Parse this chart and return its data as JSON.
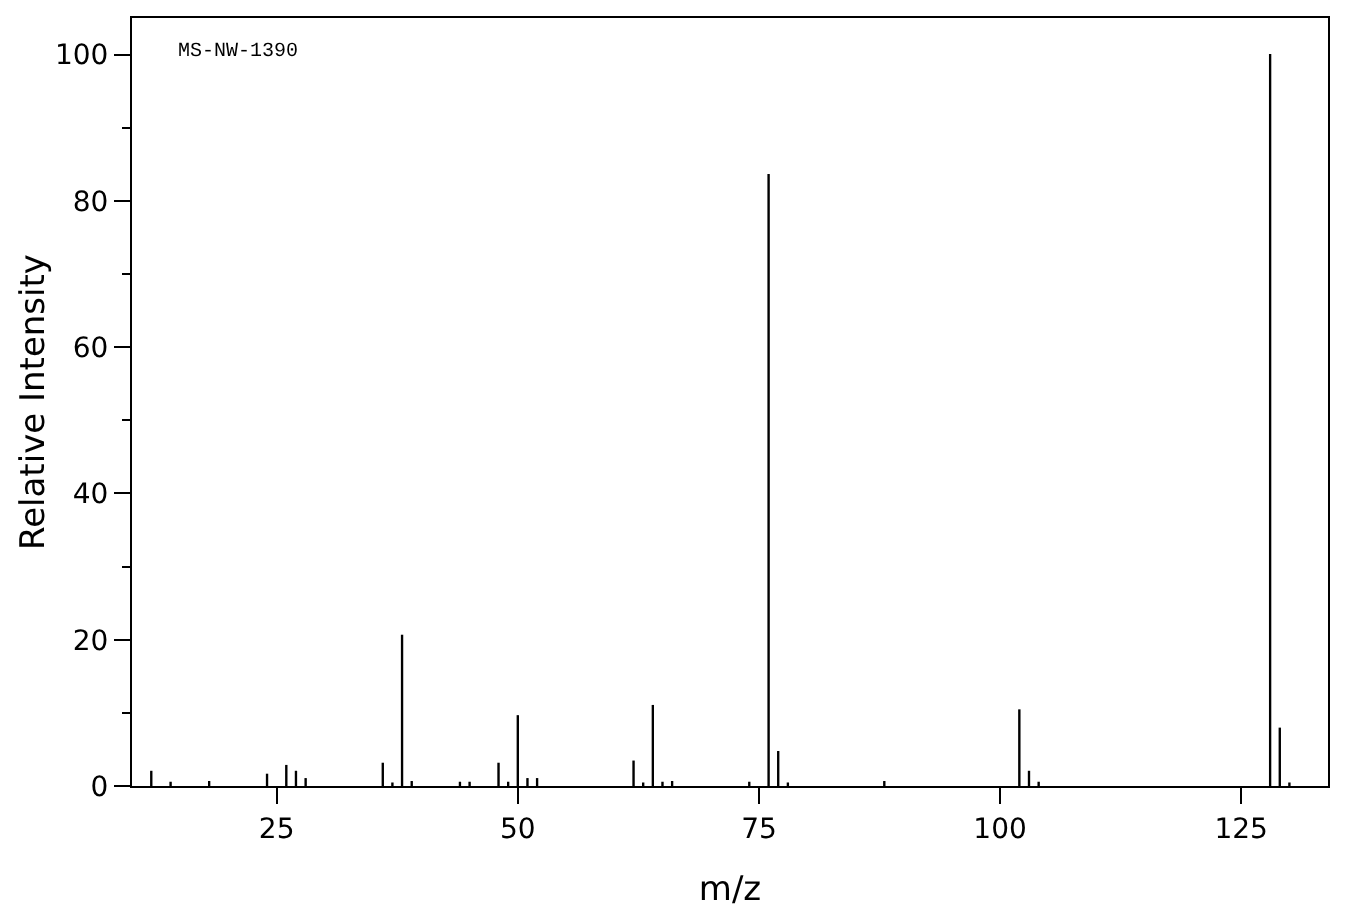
{
  "chart_data": {
    "type": "bar",
    "xlabel": "m/z",
    "ylabel": "Relative Intensity",
    "annotations": [
      "MS-NW-1390"
    ],
    "x": [
      12,
      14,
      18,
      24,
      26,
      27,
      28,
      36,
      37,
      38,
      39,
      44,
      45,
      48,
      49,
      50,
      51,
      52,
      62,
      63,
      64,
      65,
      66,
      74,
      76,
      77,
      78,
      88,
      102,
      103,
      104,
      128,
      129,
      130
    ],
    "values": [
      2.0,
      0.5,
      0.6,
      1.6,
      2.8,
      2.0,
      1.0,
      3.1,
      0.4,
      20.6,
      0.6,
      0.5,
      0.5,
      3.1,
      0.5,
      9.6,
      1.0,
      1.0,
      3.4,
      0.4,
      11.0,
      0.5,
      0.6,
      0.5,
      83.6,
      4.7,
      0.4,
      0.6,
      10.4,
      2.0,
      0.5,
      100,
      7.9,
      0.4
    ],
    "color": "#000000",
    "xlim": [
      10,
      134
    ],
    "ylim": [
      0,
      105
    ],
    "xticks": [
      25,
      50,
      75,
      100,
      125
    ],
    "yticks": [
      0,
      20,
      40,
      60,
      80,
      100,
      {
        "value": 10,
        "label": null
      },
      {
        "value": 30,
        "label": null
      },
      {
        "value": 50,
        "label": null
      },
      {
        "value": 70,
        "label": null
      },
      {
        "value": 90,
        "label": null
      }
    ],
    "grid": false
  }
}
